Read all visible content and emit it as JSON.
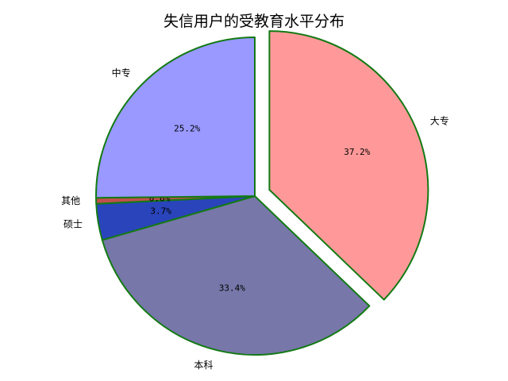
{
  "chart_data": {
    "type": "pie",
    "title": "失信用户的受教育水平分布",
    "slices": [
      {
        "label": "大专",
        "value": 37.2,
        "pct_text": "37.2%",
        "color": "#ff9999",
        "explode": true
      },
      {
        "label": "本科",
        "value": 33.4,
        "pct_text": "33.4%",
        "color": "#7777aa",
        "explode": false
      },
      {
        "label": "硕士",
        "value": 3.7,
        "pct_text": "3.7%",
        "color": "#2a44bb",
        "explode": false
      },
      {
        "label": "其他",
        "value": 0.6,
        "pct_text": "0.6%",
        "color": "#c0504d",
        "explode": false
      },
      {
        "label": "中专",
        "value": 25.2,
        "pct_text": "25.2%",
        "color": "#9999ff",
        "explode": false
      }
    ],
    "start_angle": "top",
    "direction": "clockwise",
    "edge_color": "#137a13",
    "legend": "none"
  }
}
